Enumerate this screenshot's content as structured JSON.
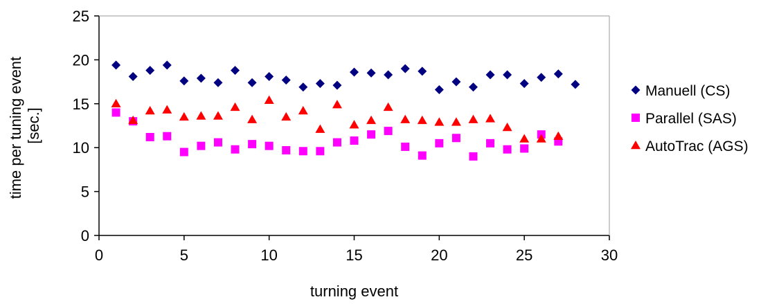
{
  "chart_data": {
    "type": "scatter",
    "title": "",
    "xlabel": "turning event",
    "ylabel_lines": [
      "time per tuning event",
      "[sec.]"
    ],
    "xlim": [
      0,
      30
    ],
    "ylim": [
      0,
      25
    ],
    "xticks": [
      0,
      5,
      10,
      15,
      20,
      25,
      30
    ],
    "yticks": [
      0,
      5,
      10,
      15,
      20,
      25
    ],
    "grid": false,
    "legend_position": "right",
    "series": [
      {
        "name": "Manuell (CS)",
        "marker": "diamond",
        "color": "#000080",
        "x": [
          1,
          2,
          3,
          4,
          5,
          6,
          7,
          8,
          9,
          10,
          11,
          12,
          13,
          14,
          15,
          16,
          17,
          18,
          19,
          20,
          21,
          22,
          23,
          24,
          25,
          26,
          27,
          28
        ],
        "y": [
          19.4,
          18.1,
          18.8,
          19.4,
          17.6,
          17.9,
          17.4,
          18.8,
          17.4,
          18.1,
          17.7,
          16.9,
          17.3,
          17.1,
          18.6,
          18.5,
          18.3,
          19.0,
          18.7,
          16.6,
          17.5,
          16.9,
          18.3,
          18.3,
          17.3,
          18.0,
          18.4,
          17.2
        ]
      },
      {
        "name": "Parallel (SAS)",
        "marker": "square",
        "color": "#FF00FF",
        "x": [
          1,
          2,
          3,
          4,
          5,
          6,
          7,
          8,
          9,
          10,
          11,
          12,
          13,
          14,
          15,
          16,
          17,
          18,
          19,
          20,
          21,
          22,
          23,
          24,
          25,
          26,
          27
        ],
        "y": [
          14.0,
          13.0,
          11.2,
          11.3,
          9.5,
          10.2,
          10.6,
          9.8,
          10.4,
          10.2,
          9.7,
          9.6,
          9.6,
          10.6,
          10.8,
          11.5,
          11.9,
          10.1,
          9.1,
          10.5,
          11.1,
          9.0,
          10.5,
          9.8,
          9.9,
          11.5,
          10.7
        ]
      },
      {
        "name": "AutoTrac (AGS)",
        "marker": "triangle",
        "color": "#FF0000",
        "x": [
          1,
          2,
          3,
          4,
          5,
          6,
          7,
          8,
          9,
          10,
          11,
          12,
          13,
          14,
          15,
          16,
          17,
          18,
          19,
          20,
          21,
          22,
          23,
          24,
          25,
          26,
          27
        ],
        "y": [
          15.0,
          13.1,
          14.2,
          14.3,
          13.5,
          13.6,
          13.6,
          14.6,
          13.2,
          15.4,
          13.5,
          14.2,
          12.1,
          14.9,
          12.6,
          13.1,
          14.6,
          13.2,
          13.1,
          12.9,
          12.9,
          13.2,
          13.3,
          12.3,
          11.0,
          11.0,
          11.3
        ]
      }
    ]
  }
}
